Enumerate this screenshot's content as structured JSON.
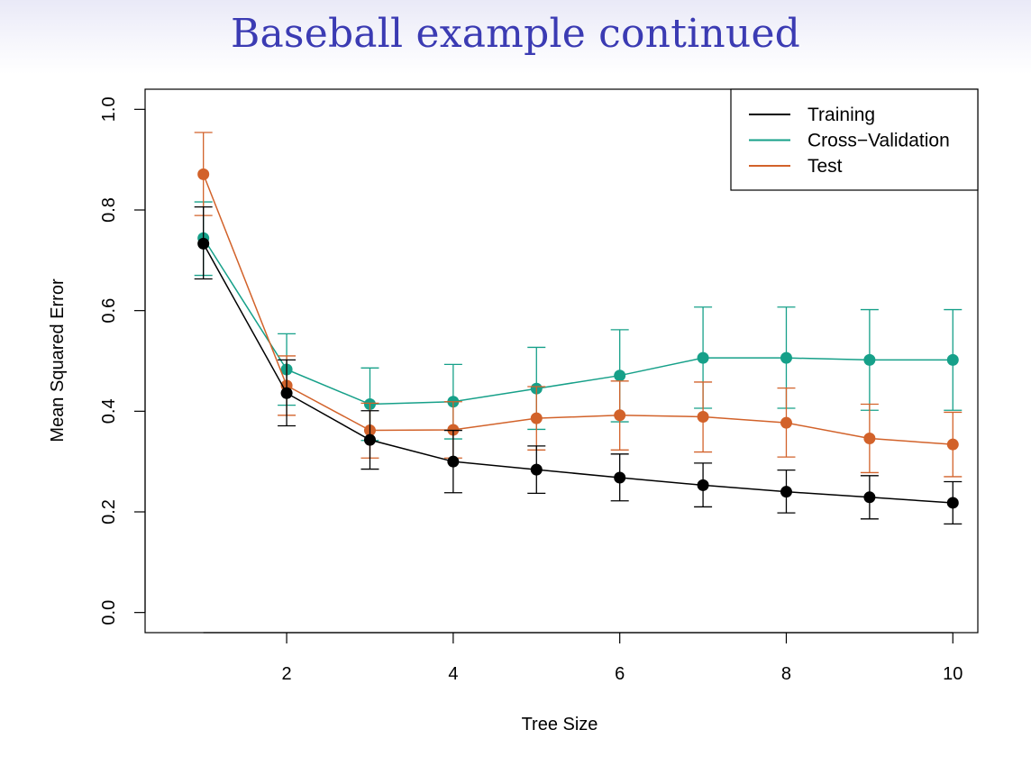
{
  "slide": {
    "title": "Baseball example continued"
  },
  "chart_data": {
    "type": "line",
    "title": "",
    "xlabel": "Tree Size",
    "ylabel": "Mean Squared Error",
    "xlim": [
      0.3,
      10.3
    ],
    "ylim": [
      -0.04,
      1.04
    ],
    "xticks": [
      2,
      4,
      6,
      8,
      10
    ],
    "xtick_labels": [
      "2",
      "4",
      "6",
      "8",
      "10"
    ],
    "yticks": [
      0.0,
      0.2,
      0.4,
      0.6,
      0.8,
      1.0
    ],
    "ytick_labels": [
      "0.0",
      "0.2",
      "0.4",
      "0.6",
      "0.8",
      "1.0"
    ],
    "grid": false,
    "legend_position": "top-right",
    "x": [
      1,
      2,
      3,
      4,
      5,
      6,
      7,
      8,
      9,
      10
    ],
    "series": [
      {
        "name": "Training",
        "color": "#000000",
        "values": [
          0.733,
          0.436,
          0.343,
          0.3,
          0.284,
          0.268,
          0.253,
          0.24,
          0.229,
          0.218
        ],
        "err_low": [
          0.663,
          0.371,
          0.285,
          0.238,
          0.237,
          0.222,
          0.21,
          0.198,
          0.186,
          0.176
        ],
        "err_high": [
          0.806,
          0.502,
          0.401,
          0.362,
          0.331,
          0.315,
          0.297,
          0.283,
          0.272,
          0.26
        ]
      },
      {
        "name": "Cross−Validation",
        "color": "#16a089",
        "values": [
          0.744,
          0.483,
          0.414,
          0.419,
          0.445,
          0.471,
          0.506,
          0.506,
          0.502,
          0.502
        ],
        "err_low": [
          0.67,
          0.412,
          0.342,
          0.345,
          0.364,
          0.379,
          0.406,
          0.406,
          0.402,
          0.402
        ],
        "err_high": [
          0.816,
          0.554,
          0.486,
          0.493,
          0.527,
          0.562,
          0.607,
          0.607,
          0.602,
          0.602
        ]
      },
      {
        "name": "Test",
        "color": "#d2622a",
        "values": [
          0.871,
          0.451,
          0.362,
          0.363,
          0.386,
          0.392,
          0.389,
          0.377,
          0.346,
          0.334
        ],
        "err_low": [
          0.789,
          0.392,
          0.307,
          0.307,
          0.323,
          0.323,
          0.319,
          0.309,
          0.278,
          0.27
        ],
        "err_high": [
          0.954,
          0.51,
          0.416,
          0.419,
          0.449,
          0.46,
          0.458,
          0.446,
          0.414,
          0.398
        ]
      }
    ]
  }
}
